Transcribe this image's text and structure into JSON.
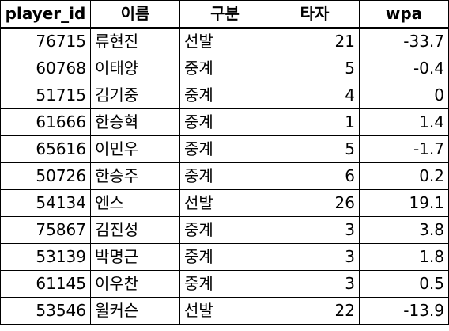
{
  "table": {
    "columns": [
      "player_id",
      "이름",
      "구분",
      "타자",
      "wpa"
    ],
    "rows": [
      [
        "76715",
        "류현진",
        "선발",
        "21",
        "-33.7"
      ],
      [
        "60768",
        "이태양",
        "중계",
        "5",
        "-0.4"
      ],
      [
        "51715",
        "김기중",
        "중계",
        "4",
        "0"
      ],
      [
        "61666",
        "한승혁",
        "중계",
        "1",
        "1.4"
      ],
      [
        "65616",
        "이민우",
        "중계",
        "5",
        "-1.7"
      ],
      [
        "50726",
        "한승주",
        "중계",
        "6",
        "0.2"
      ],
      [
        "54134",
        "엔스",
        "선발",
        "26",
        "19.1"
      ],
      [
        "75867",
        "김진성",
        "중계",
        "3",
        "3.8"
      ],
      [
        "53139",
        "박명근",
        "중계",
        "3",
        "1.8"
      ],
      [
        "61145",
        "이우찬",
        "중계",
        "3",
        "0.5"
      ],
      [
        "53546",
        "윌커슨",
        "선발",
        "22",
        "-13.9"
      ]
    ]
  }
}
